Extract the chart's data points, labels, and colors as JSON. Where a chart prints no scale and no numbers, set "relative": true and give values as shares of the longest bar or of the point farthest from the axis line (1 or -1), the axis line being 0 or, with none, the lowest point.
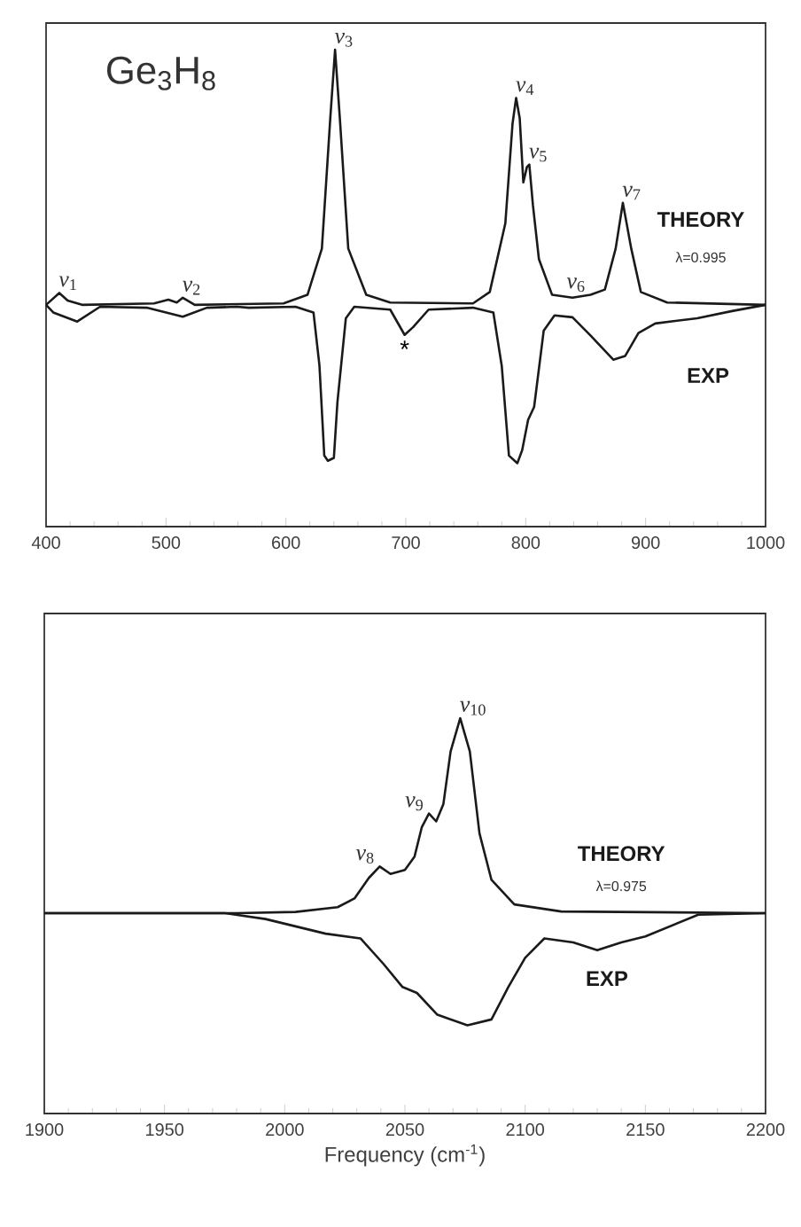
{
  "chart_data": [
    {
      "type": "line",
      "relative": true,
      "xlim": [
        400,
        1000
      ],
      "xticks": [
        400,
        500,
        600,
        700,
        800,
        900,
        1000
      ],
      "tick_labels": "x",
      "grid": false,
      "legend": false,
      "marker": "none",
      "line_style": "solid",
      "series": [
        {
          "name": "THEORY",
          "color": "#1a1a1a",
          "x": [
            400,
            411,
            418,
            430,
            490,
            502,
            509,
            514,
            524,
            598,
            618,
            630,
            637,
            641,
            645,
            652,
            667,
            687,
            756,
            770,
            783,
            789,
            792,
            795,
            798,
            801,
            803,
            806,
            811,
            822,
            839,
            854,
            866,
            875,
            881,
            888,
            896,
            918,
            1000
          ],
          "values": [
            0.465,
            0.49,
            0.474,
            0.465,
            0.468,
            0.476,
            0.47,
            0.48,
            0.465,
            0.468,
            0.486,
            0.583,
            0.856,
            1.0,
            0.856,
            0.583,
            0.486,
            0.47,
            0.468,
            0.492,
            0.636,
            0.845,
            0.899,
            0.856,
            0.722,
            0.754,
            0.759,
            0.674,
            0.561,
            0.486,
            0.48,
            0.486,
            0.497,
            0.583,
            0.679,
            0.583,
            0.492,
            0.47,
            0.465
          ]
        },
        {
          "name": "EXP",
          "color": "#1a1a1a",
          "x": [
            400,
            406,
            426,
            445,
            484,
            514,
            534,
            559,
            569,
            608,
            623,
            628,
            632,
            635,
            640,
            643,
            650,
            657,
            687,
            699,
            706,
            719,
            756,
            773,
            780,
            786,
            793,
            797,
            802,
            807,
            815,
            824,
            839,
            854,
            873,
            883,
            894,
            908,
            943,
            972,
            1000
          ],
          "values": [
            0.465,
            0.449,
            0.43,
            0.461,
            0.459,
            0.44,
            0.459,
            0.461,
            0.459,
            0.461,
            0.449,
            0.337,
            0.149,
            0.138,
            0.144,
            0.262,
            0.437,
            0.461,
            0.455,
            0.402,
            0.418,
            0.455,
            0.459,
            0.449,
            0.337,
            0.149,
            0.133,
            0.16,
            0.224,
            0.251,
            0.411,
            0.443,
            0.439,
            0.401,
            0.35,
            0.358,
            0.406,
            0.426,
            0.437,
            0.452,
            0.465
          ]
        }
      ],
      "annotations": [
        "Ge$_{3}$H$_{8}$",
        "λ=0.995",
        {
          "text": "*v*$_{1}$",
          "x": 411,
          "y": 0.49
        },
        {
          "text": "*v*$_{2}$",
          "x": 514,
          "y": 0.48
        },
        {
          "text": "*v*$_{3}$",
          "x": 641,
          "y": 1.0
        },
        {
          "text": "*v*$_{4}$",
          "x": 792,
          "y": 0.899
        },
        {
          "text": "*v*$_{5}$",
          "x": 803,
          "y": 0.759
        },
        {
          "text": "*v*$_{6}$",
          "x": 854,
          "y": 0.486
        },
        {
          "text": "*v*$_{7}$",
          "x": 881,
          "y": 0.679
        },
        {
          "text": "*",
          "x": 699,
          "y": 0.402
        }
      ]
    },
    {
      "type": "line",
      "relative": true,
      "xlim": [
        1900,
        2200
      ],
      "xticks": [
        1900,
        1950,
        2000,
        2050,
        2100,
        2150,
        2200
      ],
      "xlabel": "Frequency (cm$^{-1}$)",
      "tick_labels": "x",
      "grid": false,
      "legend": false,
      "marker": "none",
      "line_style": "solid",
      "series": [
        {
          "name": "THEORY",
          "color": "#1a1a1a",
          "x": [
            1900,
            1980,
            2004.5,
            2022,
            2029,
            2035,
            2039.5,
            2044,
            2050,
            2054,
            2057,
            2060,
            2063,
            2066,
            2069,
            2073,
            2077,
            2081,
            2086,
            2095.5,
            2115,
            2200
          ],
          "values": [
            0.507,
            0.507,
            0.51,
            0.522,
            0.544,
            0.596,
            0.625,
            0.606,
            0.616,
            0.65,
            0.724,
            0.759,
            0.739,
            0.783,
            0.916,
            1.0,
            0.916,
            0.709,
            0.591,
            0.529,
            0.511,
            0.507
          ]
        },
        {
          "name": "EXP",
          "color": "#1a1a1a",
          "x": [
            1900,
            1975,
            1992,
            2017,
            2031.5,
            2041,
            2049,
            2055,
            2063.5,
            2076,
            2086,
            2093,
            2100,
            2108,
            2120,
            2130,
            2140,
            2150,
            2172,
            2200
          ],
          "values": [
            0.507,
            0.507,
            0.492,
            0.455,
            0.443,
            0.379,
            0.32,
            0.305,
            0.25,
            0.223,
            0.238,
            0.32,
            0.394,
            0.443,
            0.433,
            0.413,
            0.433,
            0.448,
            0.503,
            0.507
          ]
        }
      ],
      "annotations": [
        "λ=0.975",
        {
          "text": "*v*$_{8}$",
          "x": 2039.5,
          "y": 0.625
        },
        {
          "text": "*v*$_{9}$",
          "x": 2060,
          "y": 0.759
        },
        {
          "text": "*v*$_{10}$",
          "x": 2073,
          "y": 1.0
        }
      ]
    }
  ]
}
